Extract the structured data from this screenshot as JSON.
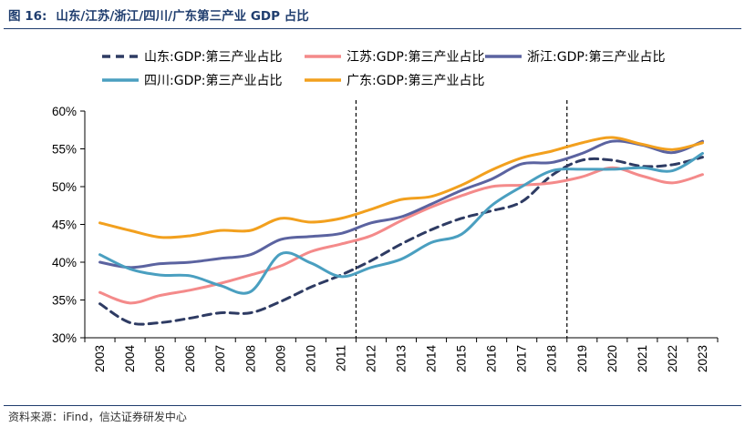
{
  "figure": {
    "number": "图 16:",
    "title": "山东/江苏/浙江/四川/广东第三产业 GDP 占比",
    "source": "资料来源：iFind，信达证券研发中心"
  },
  "chart_data": {
    "type": "line",
    "x": [
      "2003",
      "2004",
      "2005",
      "2006",
      "2007",
      "2008",
      "2009",
      "2010",
      "2011",
      "2012",
      "2013",
      "2014",
      "2015",
      "2016",
      "2017",
      "2018",
      "2019",
      "2020",
      "2021",
      "2022",
      "2023"
    ],
    "ylim": [
      0.3,
      0.6
    ],
    "yticks": [
      0.3,
      0.35,
      0.4,
      0.45,
      0.5,
      0.55,
      0.6
    ],
    "ytick_labels": [
      "30%",
      "35%",
      "40%",
      "45%",
      "50%",
      "55%",
      "60%"
    ],
    "vlines": [
      "2011",
      "2018"
    ],
    "grid": false,
    "legend_position": "top",
    "series": [
      {
        "name": "山东:GDP:第三产业占比",
        "color": "#2e3b63",
        "dash": true,
        "width": 3,
        "values": [
          0.345,
          0.32,
          0.32,
          0.326,
          0.333,
          0.333,
          0.348,
          0.367,
          0.383,
          0.402,
          0.424,
          0.443,
          0.458,
          0.468,
          0.48,
          0.515,
          0.535,
          0.535,
          0.527,
          0.529,
          0.539
        ]
      },
      {
        "name": "江苏:GDP:第三产业占比",
        "color": "#f48a8a",
        "dash": false,
        "width": 3,
        "values": [
          0.36,
          0.346,
          0.356,
          0.363,
          0.372,
          0.383,
          0.395,
          0.414,
          0.424,
          0.435,
          0.455,
          0.473,
          0.488,
          0.5,
          0.502,
          0.505,
          0.513,
          0.525,
          0.514,
          0.505,
          0.516
        ]
      },
      {
        "name": "浙江:GDP:第三产业占比",
        "color": "#5b63a0",
        "dash": false,
        "width": 3,
        "values": [
          0.4,
          0.393,
          0.398,
          0.4,
          0.405,
          0.41,
          0.43,
          0.434,
          0.438,
          0.452,
          0.46,
          0.477,
          0.495,
          0.51,
          0.53,
          0.532,
          0.544,
          0.56,
          0.555,
          0.545,
          0.56
        ]
      },
      {
        "name": "四川:GDP:第三产业占比",
        "color": "#4a9fc0",
        "dash": false,
        "width": 3,
        "values": [
          0.41,
          0.391,
          0.383,
          0.382,
          0.369,
          0.361,
          0.411,
          0.399,
          0.381,
          0.393,
          0.404,
          0.426,
          0.437,
          0.475,
          0.5,
          0.521,
          0.523,
          0.523,
          0.525,
          0.521,
          0.544
        ]
      },
      {
        "name": "广东:GDP:第三产业占比",
        "color": "#f2a01e",
        "dash": false,
        "width": 3,
        "values": [
          0.452,
          0.442,
          0.433,
          0.435,
          0.442,
          0.442,
          0.458,
          0.453,
          0.458,
          0.47,
          0.483,
          0.487,
          0.502,
          0.522,
          0.538,
          0.547,
          0.558,
          0.565,
          0.556,
          0.549,
          0.558
        ]
      }
    ]
  }
}
